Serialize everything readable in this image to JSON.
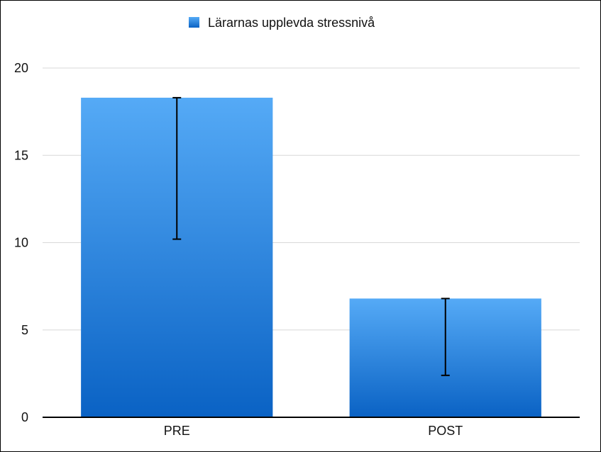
{
  "chart_data": {
    "type": "bar",
    "categories": [
      "PRE",
      "POST"
    ],
    "series": [
      {
        "name": "Lärarnas upplevda stressnivå",
        "values": [
          18.3,
          6.8
        ],
        "error_low": [
          10.2,
          2.4
        ],
        "error_high": [
          18.3,
          6.8
        ]
      }
    ],
    "ylim": [
      0,
      20
    ],
    "yticks": [
      "0",
      "5",
      "10",
      "15",
      "20"
    ],
    "grid": true,
    "legend_position": "top-center",
    "colors": {
      "bar_top": "#55aaf6",
      "bar_bottom": "#0a62c4",
      "grid": "#d8d8d8",
      "axis": "#000000"
    }
  }
}
